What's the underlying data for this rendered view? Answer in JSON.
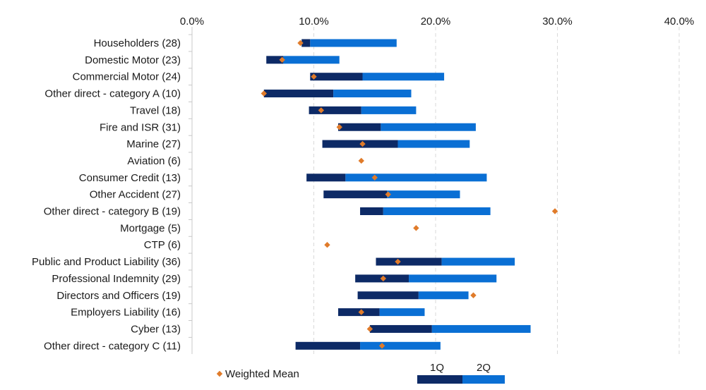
{
  "chart_data": {
    "type": "bar",
    "orientation": "horizontal",
    "stacked": true,
    "x_axis_position": "top",
    "xlim": [
      0,
      40
    ],
    "xticks": [
      "0.0%",
      "10.0%",
      "20.0%",
      "30.0%",
      "40.0%"
    ],
    "xtick_values": [
      0,
      10,
      20,
      30,
      40
    ],
    "grid": "vertical-dashed",
    "categories": [
      "Householders (28)",
      "Domestic Motor (23)",
      "Commercial Motor (24)",
      "Other direct - category A (10)",
      "Travel (18)",
      "Fire and ISR (31)",
      "Marine (27)",
      "Aviation (6)",
      "Consumer Credit (13)",
      "Other Accident (27)",
      "Other direct - category B (19)",
      "Mortgage (5)",
      "CTP (6)",
      "Public and Product Liability (36)",
      "Professional Indemnity (29)",
      "Directors and Officers (19)",
      "Employers Liability (16)",
      "Cyber (13)",
      "Other direct - category C (11)"
    ],
    "series": [
      {
        "name": "1Q",
        "color": "#0d2a66",
        "values": [
          [
            9.0,
            9.7
          ],
          [
            6.1,
            7.5
          ],
          [
            9.7,
            14.0
          ],
          [
            5.9,
            11.6
          ],
          [
            9.6,
            13.9
          ],
          [
            12.0,
            15.5
          ],
          [
            10.7,
            16.9
          ],
          null,
          [
            9.4,
            12.6
          ],
          [
            10.8,
            16.0
          ],
          [
            13.8,
            15.7
          ],
          null,
          null,
          [
            15.1,
            20.5
          ],
          [
            13.4,
            17.8
          ],
          [
            13.6,
            18.6
          ],
          [
            12.0,
            15.4
          ],
          [
            14.6,
            19.7
          ],
          [
            8.5,
            13.8
          ]
        ]
      },
      {
        "name": "2Q",
        "color": "#0a6fd4",
        "values": [
          [
            9.7,
            16.8
          ],
          [
            7.5,
            12.1
          ],
          [
            14.0,
            20.7
          ],
          [
            11.6,
            18.0
          ],
          [
            13.9,
            18.4
          ],
          [
            15.5,
            23.3
          ],
          [
            16.9,
            22.8
          ],
          null,
          [
            12.6,
            24.2
          ],
          [
            16.0,
            22.0
          ],
          [
            15.7,
            24.5
          ],
          null,
          null,
          [
            20.5,
            26.5
          ],
          [
            17.8,
            25.0
          ],
          [
            18.6,
            22.7
          ],
          [
            15.4,
            19.1
          ],
          [
            19.7,
            27.8
          ],
          [
            13.8,
            20.4
          ]
        ]
      },
      {
        "name": "Weighted Mean",
        "type": "scatter",
        "marker": "diamond",
        "color": "#e07b2a",
        "values": [
          8.9,
          7.4,
          10.0,
          5.9,
          10.6,
          12.1,
          14.0,
          13.9,
          15.0,
          16.1,
          29.8,
          18.4,
          11.1,
          16.9,
          15.7,
          23.1,
          13.9,
          14.6,
          15.6
        ]
      }
    ],
    "legend": [
      {
        "label": "Weighted Mean"
      },
      {
        "label": "1Q"
      },
      {
        "label": "2Q"
      }
    ],
    "legend_placement": "bottom"
  }
}
